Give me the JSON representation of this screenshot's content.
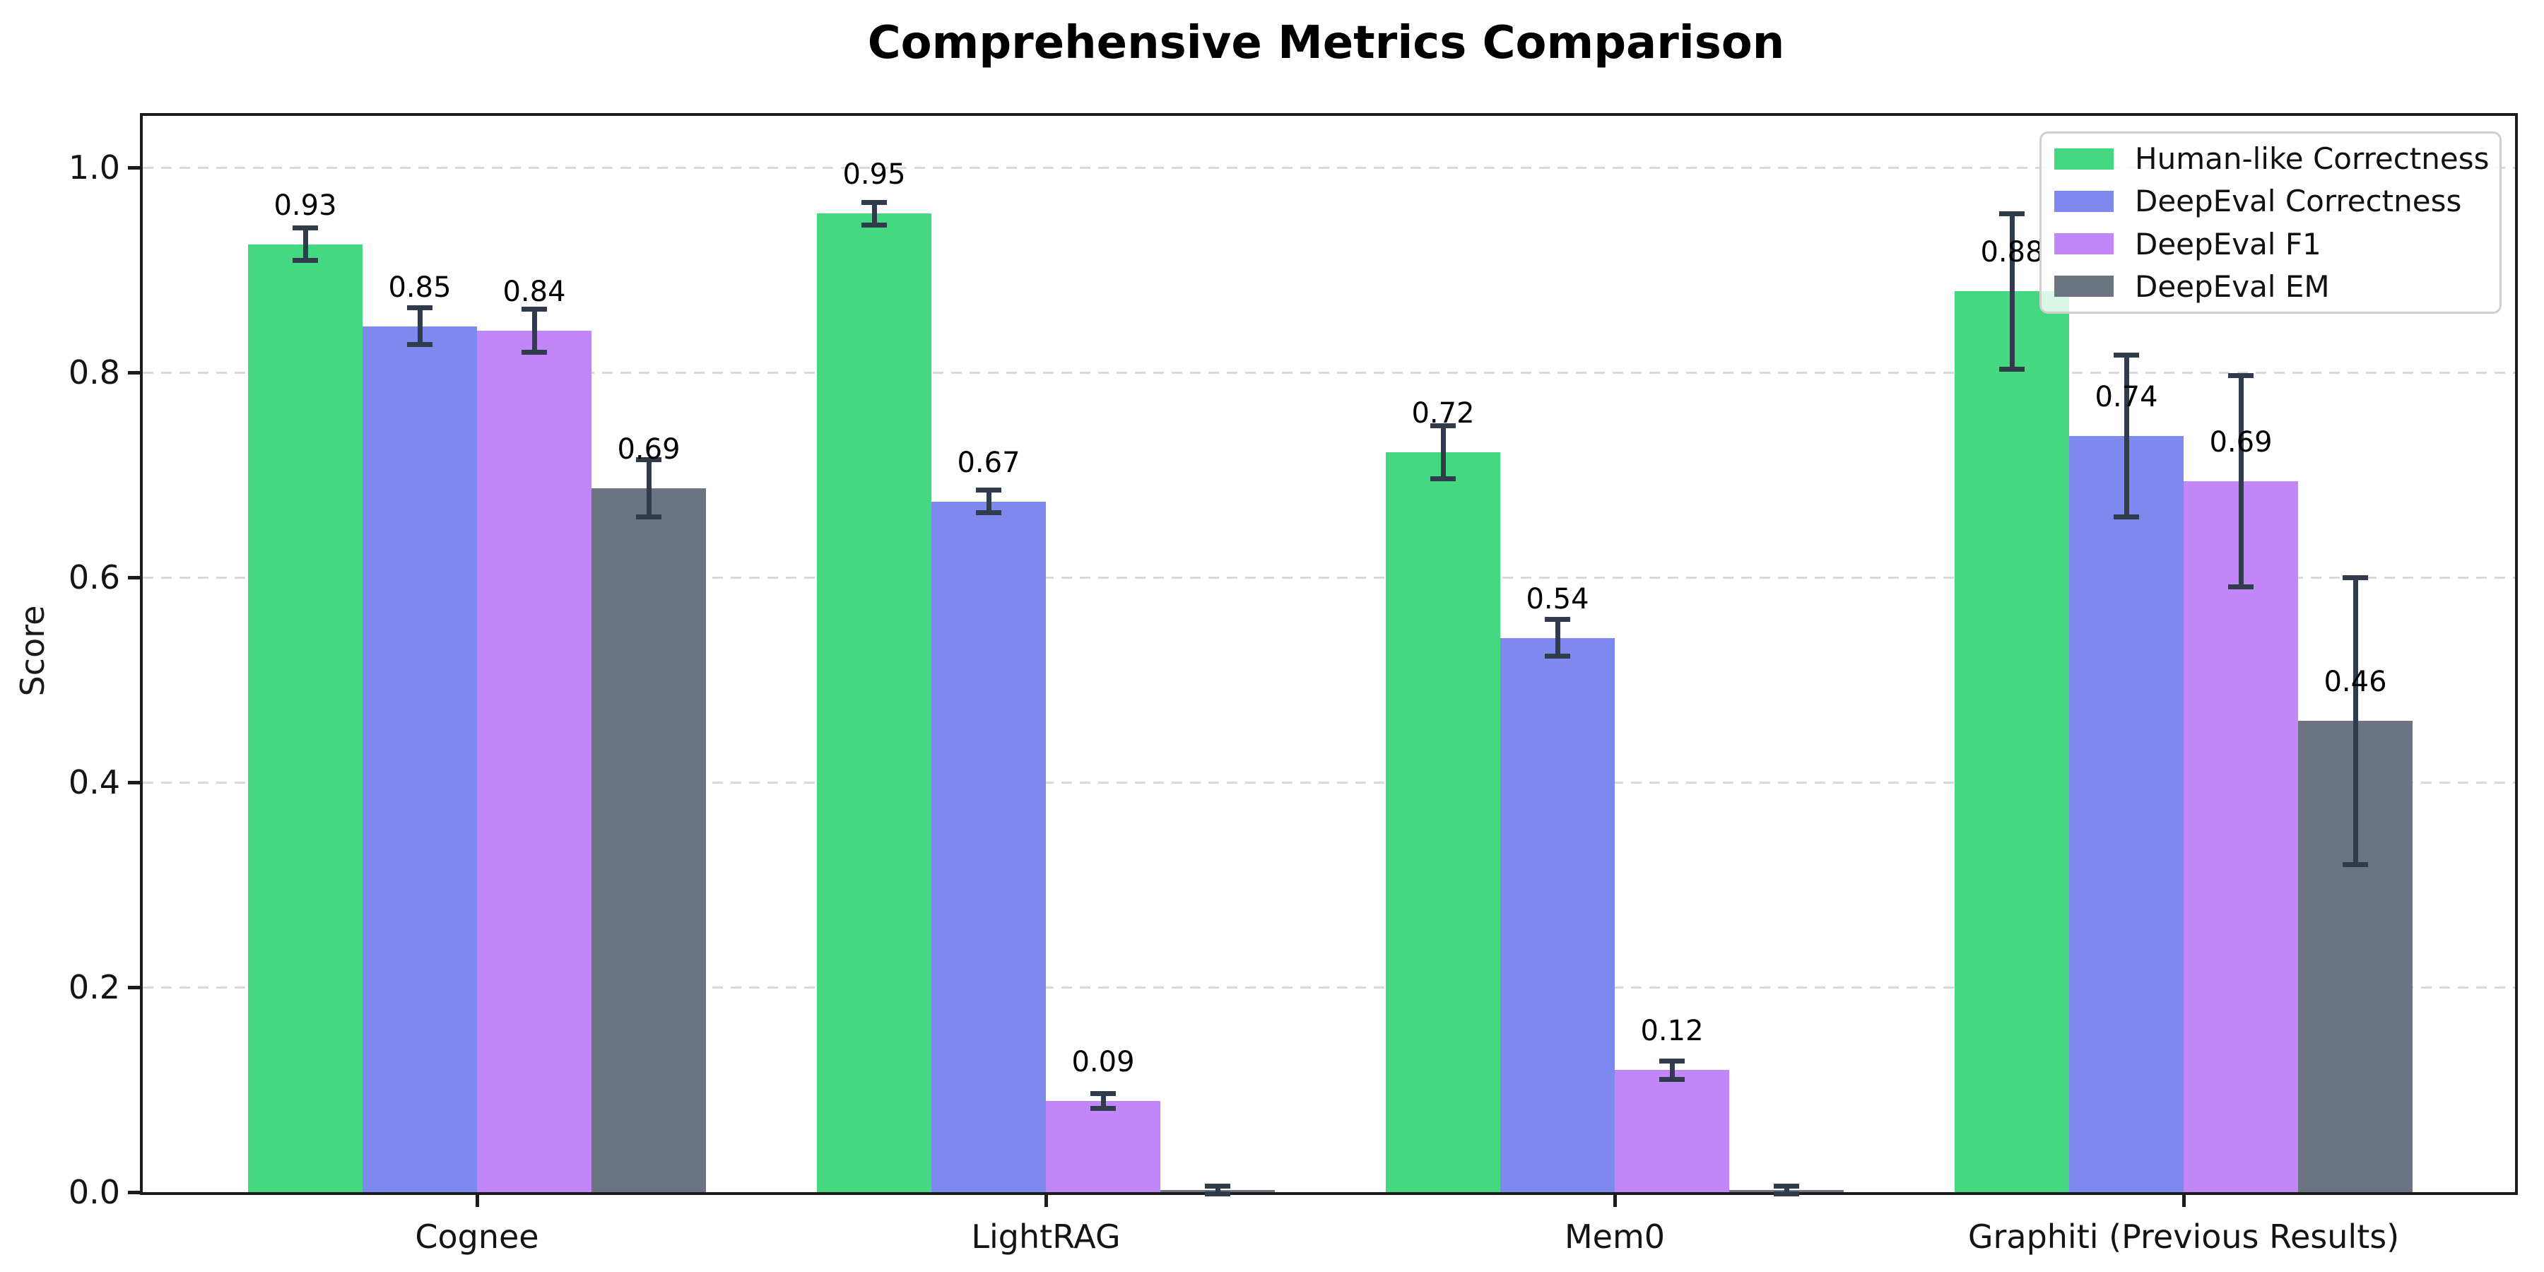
{
  "chart_data": {
    "type": "bar",
    "title": "Comprehensive Metrics Comparison",
    "xlabel": "",
    "ylabel": "Score",
    "ylim": [
      0,
      1.05
    ],
    "yticks": [
      "0.0",
      "0.2",
      "0.4",
      "0.6",
      "0.8",
      "1.0"
    ],
    "grid": "horizontal dashed, light gray",
    "legend_position": "upper right",
    "background_color": "#ffffff",
    "error_bar_color": "#303c4b",
    "categories": [
      "Cognee",
      "LightRAG",
      "Mem0",
      "Graphiti (Previous Results)"
    ],
    "series": [
      {
        "name": "Human-like Correctness",
        "color": "#44d980",
        "values": [
          0.925,
          0.955,
          0.722,
          0.879
        ],
        "errors": [
          0.016,
          0.011,
          0.026,
          0.076
        ],
        "bar_labels": [
          "0.93",
          "0.95",
          "0.72",
          "0.88"
        ]
      },
      {
        "name": "DeepEval Correctness",
        "color": "#7e89f0",
        "values": [
          0.845,
          0.674,
          0.541,
          0.738
        ],
        "errors": [
          0.018,
          0.011,
          0.018,
          0.079
        ],
        "bar_labels": [
          "0.85",
          "0.67",
          "0.54",
          "0.74"
        ]
      },
      {
        "name": "DeepEval F1",
        "color": "#c186f7",
        "values": [
          0.841,
          0.089,
          0.119,
          0.694
        ],
        "errors": [
          0.021,
          0.007,
          0.009,
          0.103
        ],
        "bar_labels": [
          "0.84",
          "0.09",
          "0.12",
          "0.69"
        ]
      },
      {
        "name": "DeepEval EM",
        "color": "#6b7480",
        "values": [
          0.687,
          0.002,
          0.002,
          0.46
        ],
        "errors": [
          0.028,
          0.004,
          0.004,
          0.14
        ],
        "bar_labels": [
          "0.69",
          "",
          "",
          "0.46"
        ]
      }
    ]
  }
}
